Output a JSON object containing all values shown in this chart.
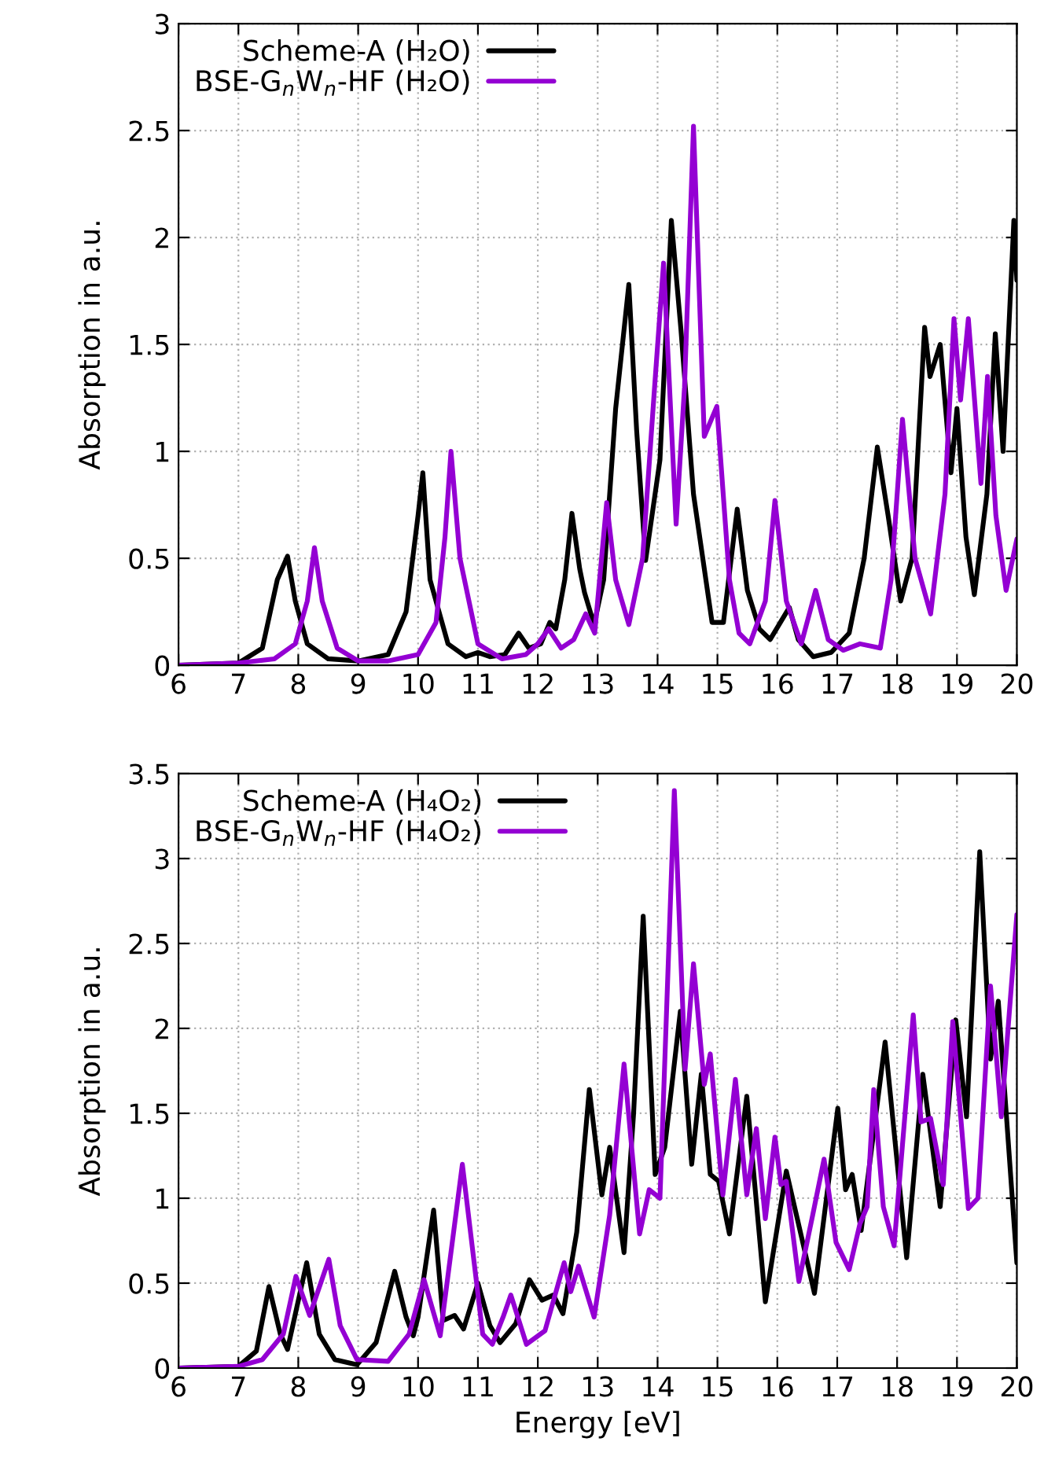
{
  "chart_data": [
    {
      "type": "line",
      "ylabel": "Absorption in a.u.",
      "xlim": [
        6,
        20
      ],
      "ylim": [
        0,
        3
      ],
      "xticks": [
        6,
        7,
        8,
        9,
        10,
        11,
        12,
        13,
        14,
        15,
        16,
        17,
        18,
        19,
        20
      ],
      "yticks": [
        0,
        0.5,
        1,
        1.5,
        2,
        2.5,
        3
      ],
      "grid": true,
      "legend": "top left",
      "line_style": "solid",
      "series": [
        {
          "name": "Scheme-A (H₂O)",
          "color": "#000000",
          "x": [
            6,
            7,
            7.4,
            7.65,
            7.82,
            7.95,
            8.15,
            8.5,
            9,
            9.5,
            9.8,
            10.0,
            10.08,
            10.2,
            10.5,
            10.8,
            11,
            11.2,
            11.45,
            11.68,
            11.85,
            12.05,
            12.2,
            12.3,
            12.45,
            12.57,
            12.7,
            12.78,
            12.94,
            13.1,
            13.3,
            13.52,
            13.65,
            13.8,
            14.04,
            14.23,
            14.39,
            14.6,
            14.91,
            15.1,
            15.33,
            15.5,
            15.7,
            15.88,
            16.2,
            16.35,
            16.6,
            16.9,
            17.2,
            17.45,
            17.67,
            17.85,
            18.06,
            18.25,
            18.46,
            18.55,
            18.72,
            18.9,
            19.0,
            19.15,
            19.29,
            19.5,
            19.64,
            19.77,
            19.95,
            20
          ],
          "values": [
            0,
            0.01,
            0.08,
            0.4,
            0.51,
            0.3,
            0.1,
            0.03,
            0.02,
            0.05,
            0.25,
            0.7,
            0.9,
            0.4,
            0.1,
            0.04,
            0.06,
            0.04,
            0.05,
            0.15,
            0.08,
            0.1,
            0.2,
            0.17,
            0.4,
            0.71,
            0.45,
            0.34,
            0.19,
            0.4,
            1.2,
            1.78,
            1.1,
            0.49,
            0.96,
            2.08,
            1.57,
            0.8,
            0.2,
            0.2,
            0.73,
            0.35,
            0.17,
            0.12,
            0.27,
            0.12,
            0.04,
            0.06,
            0.15,
            0.5,
            1.02,
            0.7,
            0.3,
            0.5,
            1.58,
            1.35,
            1.5,
            0.9,
            1.2,
            0.6,
            0.33,
            0.8,
            1.55,
            1.0,
            2.08,
            1.8
          ]
        },
        {
          "name": "BSE-G$_{n}$W$_{n}$-HF (H₂O)",
          "color": "#9400d3",
          "x": [
            6,
            7,
            7.6,
            7.95,
            8.15,
            8.27,
            8.4,
            8.65,
            9,
            9.5,
            10.0,
            10.3,
            10.45,
            10.55,
            10.7,
            11.0,
            11.4,
            11.8,
            12.0,
            12.18,
            12.39,
            12.6,
            12.8,
            12.95,
            13.15,
            13.3,
            13.52,
            13.75,
            13.95,
            14.1,
            14.31,
            14.45,
            14.6,
            14.78,
            14.99,
            15.2,
            15.36,
            15.54,
            15.8,
            15.96,
            16.15,
            16.4,
            16.64,
            16.85,
            17.1,
            17.38,
            17.72,
            17.9,
            18.09,
            18.3,
            18.56,
            18.8,
            18.95,
            19.06,
            19.19,
            19.4,
            19.51,
            19.65,
            19.82,
            20
          ],
          "values": [
            0,
            0.01,
            0.03,
            0.1,
            0.3,
            0.55,
            0.3,
            0.08,
            0.02,
            0.02,
            0.05,
            0.2,
            0.6,
            1.0,
            0.5,
            0.1,
            0.03,
            0.05,
            0.1,
            0.17,
            0.08,
            0.12,
            0.24,
            0.15,
            0.76,
            0.4,
            0.19,
            0.5,
            1.3,
            1.88,
            0.66,
            1.3,
            2.52,
            1.07,
            1.21,
            0.4,
            0.15,
            0.1,
            0.3,
            0.77,
            0.3,
            0.1,
            0.35,
            0.12,
            0.07,
            0.1,
            0.08,
            0.4,
            1.15,
            0.5,
            0.24,
            0.8,
            1.62,
            1.24,
            1.62,
            0.85,
            1.35,
            0.7,
            0.35,
            0.59
          ]
        }
      ]
    },
    {
      "type": "line",
      "xlabel": "Energy [eV]",
      "ylabel": "Absorption in a.u.",
      "xlim": [
        6,
        20
      ],
      "ylim": [
        0,
        3.5
      ],
      "xticks": [
        6,
        7,
        8,
        9,
        10,
        11,
        12,
        13,
        14,
        15,
        16,
        17,
        18,
        19,
        20
      ],
      "yticks": [
        0,
        0.5,
        1,
        1.5,
        2,
        2.5,
        3,
        3.5
      ],
      "grid": true,
      "legend": "top left",
      "line_style": "solid",
      "series": [
        {
          "name": "Scheme-A (H₄O₂)",
          "color": "#000000",
          "x": [
            6,
            7,
            7.3,
            7.51,
            7.7,
            7.82,
            8.14,
            8.35,
            8.61,
            8.98,
            9.3,
            9.61,
            9.8,
            9.92,
            10.0,
            10.26,
            10.42,
            10.61,
            10.76,
            11.0,
            11.2,
            11.37,
            11.63,
            11.86,
            12.07,
            12.26,
            12.42,
            12.65,
            12.86,
            13.07,
            13.2,
            13.44,
            13.6,
            13.76,
            13.96,
            14.12,
            14.38,
            14.57,
            14.73,
            14.88,
            15.02,
            15.2,
            15.49,
            15.8,
            16.15,
            16.62,
            17.01,
            17.14,
            17.25,
            17.4,
            17.8,
            18.16,
            18.43,
            18.72,
            18.98,
            19.16,
            19.38,
            19.56,
            19.69,
            20
          ],
          "values": [
            0,
            0.01,
            0.1,
            0.48,
            0.2,
            0.11,
            0.62,
            0.2,
            0.05,
            0.02,
            0.15,
            0.57,
            0.3,
            0.19,
            0.3,
            0.93,
            0.28,
            0.31,
            0.23,
            0.5,
            0.25,
            0.15,
            0.26,
            0.52,
            0.4,
            0.43,
            0.32,
            0.8,
            1.64,
            1.02,
            1.3,
            0.68,
            1.5,
            2.66,
            1.14,
            1.3,
            2.1,
            1.2,
            1.73,
            1.14,
            1.1,
            0.79,
            1.6,
            0.39,
            1.16,
            0.44,
            1.53,
            1.05,
            1.14,
            0.81,
            1.92,
            0.65,
            1.73,
            0.95,
            2.05,
            1.48,
            3.04,
            1.82,
            2.16,
            0.62
          ]
        },
        {
          "name": "BSE-G$_{n}$W$_{n}$-HF (H₄O₂)",
          "color": "#9400d3",
          "x": [
            6,
            7,
            7.4,
            7.75,
            7.96,
            8.19,
            8.51,
            8.7,
            8.98,
            9.5,
            9.85,
            10.1,
            10.37,
            10.74,
            11.08,
            11.24,
            11.42,
            11.55,
            11.81,
            12.12,
            12.44,
            12.55,
            12.68,
            12.94,
            13.2,
            13.44,
            13.7,
            13.86,
            14.04,
            14.28,
            14.46,
            14.6,
            14.78,
            14.88,
            15.09,
            15.3,
            15.49,
            15.65,
            15.8,
            15.96,
            16.06,
            16.15,
            16.36,
            16.59,
            16.78,
            16.98,
            17.2,
            17.38,
            17.5,
            17.61,
            17.77,
            17.95,
            18.27,
            18.4,
            18.56,
            18.77,
            18.93,
            19.19,
            19.35,
            19.56,
            19.74,
            20
          ],
          "values": [
            0,
            0.01,
            0.05,
            0.2,
            0.54,
            0.31,
            0.64,
            0.25,
            0.05,
            0.04,
            0.2,
            0.52,
            0.19,
            1.2,
            0.2,
            0.14,
            0.3,
            0.43,
            0.14,
            0.22,
            0.62,
            0.45,
            0.6,
            0.3,
            0.9,
            1.79,
            0.79,
            1.05,
            1.0,
            3.4,
            1.76,
            2.38,
            1.67,
            1.85,
            1.02,
            1.7,
            1.02,
            1.41,
            0.88,
            1.36,
            1.08,
            1.1,
            0.51,
            0.9,
            1.23,
            0.74,
            0.58,
            0.85,
            0.95,
            1.64,
            0.95,
            0.72,
            2.08,
            1.45,
            1.47,
            1.08,
            2.04,
            0.94,
            1.0,
            2.25,
            1.48,
            2.67
          ]
        }
      ]
    }
  ]
}
